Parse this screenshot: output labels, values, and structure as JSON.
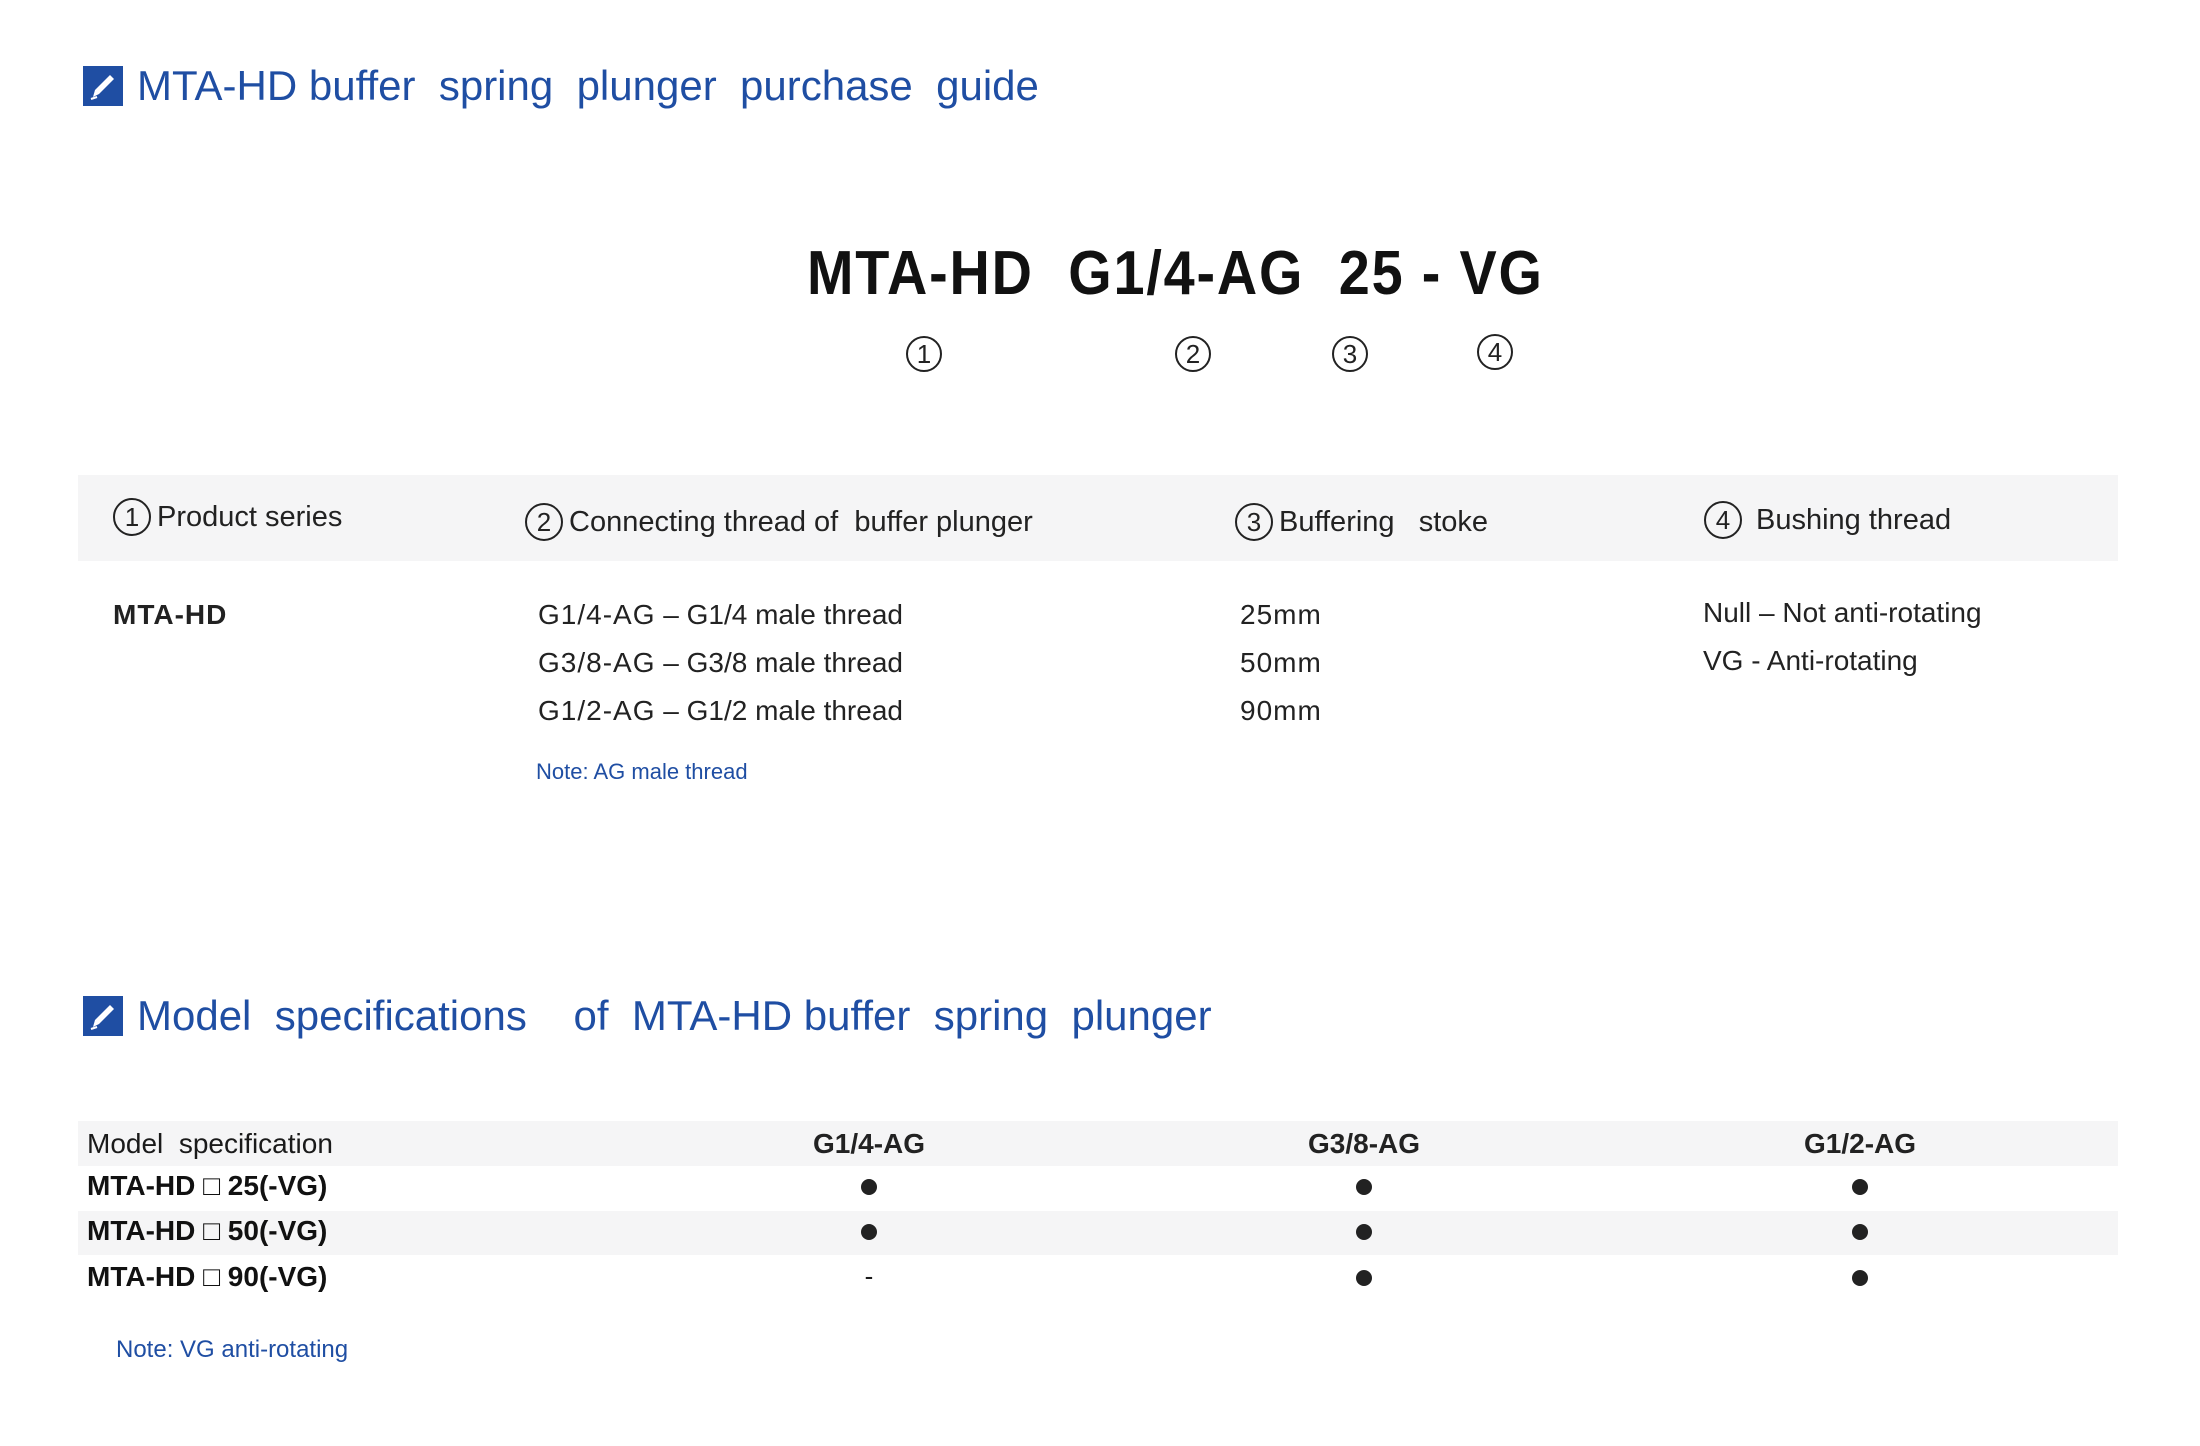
{
  "section1": {
    "title": "MTA-HD buffer  spring  plunger  purchase  guide",
    "icon": "edit-checkbox-icon"
  },
  "code": {
    "parts": [
      "MTA-HD",
      "G1/4-AG",
      "25",
      "-",
      "VG"
    ],
    "markers": [
      "①",
      "②",
      "③",
      "④"
    ]
  },
  "guide": {
    "headers": [
      {
        "num": "1",
        "label": "Product series"
      },
      {
        "num": "2",
        "label": "Connecting thread of  buffer plunger"
      },
      {
        "num": "3",
        "label": "Buffering   stoke"
      },
      {
        "num": "4",
        "label": "Bushing thread"
      }
    ],
    "series": "MTA-HD",
    "threads": [
      {
        "code": "G1/4-AG",
        "desc": "G1/4 male thread"
      },
      {
        "code": "G3/8-AG",
        "desc": "G3/8 male thread"
      },
      {
        "code": "G1/2-AG",
        "desc": "G1/2 male thread"
      }
    ],
    "thread_sep": "–",
    "strokes": [
      "25mm",
      "50mm",
      "90mm"
    ],
    "bushing": [
      "Null – Not anti-rotating",
      "VG - Anti-rotating"
    ],
    "note": "Note: AG male thread"
  },
  "section2": {
    "title": "Model  specifications    of  MTA-HD buffer  spring  plunger",
    "icon": "edit-checkbox-icon"
  },
  "spec_table": {
    "header": "Model  specification",
    "columns": [
      "G1/4-AG",
      "G3/8-AG",
      "G1/2-AG"
    ],
    "rows": [
      {
        "label": "MTA-HD □ 25(-VG)",
        "values": [
          "●",
          "●",
          "●"
        ]
      },
      {
        "label": "MTA-HD □ 50(-VG)",
        "values": [
          "●",
          "●",
          "●"
        ]
      },
      {
        "label": "MTA-HD □ 90(-VG)",
        "values": [
          "-",
          "●",
          "●"
        ]
      }
    ],
    "note": "Note: VG anti-rotating"
  }
}
